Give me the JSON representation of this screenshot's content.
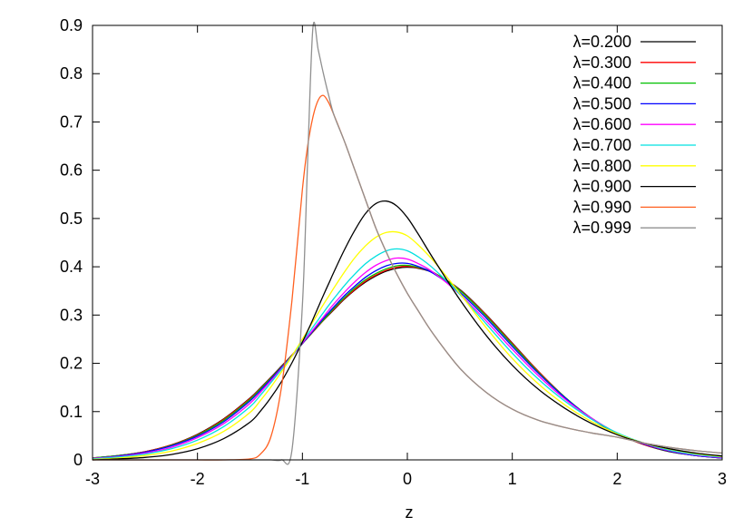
{
  "chart_data": {
    "type": "line",
    "title": "",
    "xlabel": "z",
    "ylabel": "",
    "xlim": [
      -3,
      3
    ],
    "ylim": [
      0,
      0.9
    ],
    "x_ticks": [
      "-3",
      "-2",
      "-1",
      "0",
      "1",
      "2",
      "3"
    ],
    "y_ticks": [
      "0",
      "0.1",
      "0.2",
      "0.3",
      "0.4",
      "0.5",
      "0.6",
      "0.7",
      "0.8",
      "0.9"
    ],
    "grid": false,
    "legend_position": "top-right",
    "x": [
      -3.0,
      -2.75,
      -2.5,
      -2.25,
      -2.0,
      -1.75,
      -1.5,
      -1.4,
      -1.3,
      -1.2,
      -1.1,
      -1.0,
      -0.95,
      -0.9,
      -0.85,
      -0.8,
      -0.75,
      -0.7,
      -0.6,
      -0.5,
      -0.4,
      -0.3,
      -0.2,
      -0.1,
      0.0,
      0.1,
      0.25,
      0.5,
      0.75,
      1.0,
      1.25,
      1.5,
      1.75,
      2.0,
      2.25,
      2.5,
      2.75,
      3.0
    ],
    "series": [
      {
        "name": "λ=0.200",
        "color": "#000000",
        "values": [
          0.004,
          0.009,
          0.017,
          0.031,
          0.053,
          0.085,
          0.128,
          0.149,
          0.171,
          0.194,
          0.217,
          0.241,
          0.253,
          0.265,
          0.277,
          0.289,
          0.3,
          0.311,
          0.333,
          0.352,
          0.368,
          0.381,
          0.391,
          0.397,
          0.399,
          0.397,
          0.387,
          0.353,
          0.301,
          0.242,
          0.183,
          0.13,
          0.086,
          0.054,
          0.032,
          0.017,
          0.009,
          0.004
        ]
      },
      {
        "name": "λ=0.300",
        "color": "#ff0000",
        "values": [
          0.004,
          0.009,
          0.017,
          0.031,
          0.052,
          0.084,
          0.127,
          0.148,
          0.17,
          0.193,
          0.217,
          0.241,
          0.253,
          0.265,
          0.277,
          0.289,
          0.301,
          0.312,
          0.334,
          0.353,
          0.37,
          0.383,
          0.393,
          0.399,
          0.401,
          0.398,
          0.388,
          0.352,
          0.3,
          0.241,
          0.183,
          0.13,
          0.087,
          0.055,
          0.032,
          0.018,
          0.009,
          0.004
        ]
      },
      {
        "name": "λ=0.400",
        "color": "#00c000",
        "values": [
          0.004,
          0.009,
          0.016,
          0.03,
          0.051,
          0.082,
          0.125,
          0.147,
          0.169,
          0.192,
          0.216,
          0.241,
          0.253,
          0.266,
          0.278,
          0.29,
          0.302,
          0.314,
          0.336,
          0.356,
          0.373,
          0.386,
          0.396,
          0.402,
          0.403,
          0.399,
          0.388,
          0.351,
          0.298,
          0.239,
          0.181,
          0.13,
          0.087,
          0.055,
          0.033,
          0.018,
          0.009,
          0.004
        ]
      },
      {
        "name": "λ=0.500",
        "color": "#0000ff",
        "values": [
          0.003,
          0.008,
          0.016,
          0.029,
          0.049,
          0.079,
          0.122,
          0.144,
          0.167,
          0.191,
          0.215,
          0.241,
          0.254,
          0.267,
          0.28,
          0.293,
          0.305,
          0.317,
          0.34,
          0.36,
          0.378,
          0.392,
          0.402,
          0.407,
          0.407,
          0.401,
          0.386,
          0.347,
          0.294,
          0.235,
          0.179,
          0.129,
          0.087,
          0.055,
          0.033,
          0.018,
          0.009,
          0.004
        ]
      },
      {
        "name": "λ=0.600",
        "color": "#ff00ff",
        "values": [
          0.003,
          0.007,
          0.014,
          0.026,
          0.046,
          0.075,
          0.117,
          0.14,
          0.164,
          0.189,
          0.215,
          0.242,
          0.256,
          0.269,
          0.283,
          0.296,
          0.31,
          0.323,
          0.347,
          0.369,
          0.388,
          0.403,
          0.413,
          0.418,
          0.416,
          0.407,
          0.388,
          0.343,
          0.288,
          0.229,
          0.174,
          0.126,
          0.087,
          0.055,
          0.034,
          0.019,
          0.01,
          0.005
        ]
      },
      {
        "name": "λ=0.700",
        "color": "#00e0e0",
        "values": [
          0.002,
          0.006,
          0.012,
          0.023,
          0.041,
          0.069,
          0.11,
          0.134,
          0.16,
          0.187,
          0.215,
          0.245,
          0.26,
          0.275,
          0.29,
          0.305,
          0.32,
          0.334,
          0.361,
          0.385,
          0.406,
          0.422,
          0.433,
          0.437,
          0.433,
          0.421,
          0.396,
          0.343,
          0.282,
          0.221,
          0.167,
          0.122,
          0.085,
          0.056,
          0.035,
          0.02,
          0.011,
          0.006
        ]
      },
      {
        "name": "λ=0.800",
        "color": "#ffff00",
        "values": [
          0.001,
          0.004,
          0.009,
          0.018,
          0.034,
          0.059,
          0.098,
          0.123,
          0.151,
          0.182,
          0.215,
          0.25,
          0.268,
          0.286,
          0.304,
          0.322,
          0.339,
          0.356,
          0.389,
          0.419,
          0.443,
          0.461,
          0.471,
          0.472,
          0.464,
          0.446,
          0.412,
          0.345,
          0.274,
          0.21,
          0.157,
          0.114,
          0.08,
          0.054,
          0.035,
          0.022,
          0.013,
          0.007
        ]
      },
      {
        "name": "λ=0.900",
        "color": "#000000",
        "values": [
          0.0,
          0.002,
          0.005,
          0.011,
          0.023,
          0.044,
          0.078,
          0.101,
          0.129,
          0.162,
          0.201,
          0.244,
          0.267,
          0.291,
          0.316,
          0.341,
          0.365,
          0.389,
          0.435,
          0.476,
          0.51,
          0.531,
          0.536,
          0.526,
          0.502,
          0.469,
          0.416,
          0.332,
          0.258,
          0.196,
          0.146,
          0.107,
          0.076,
          0.052,
          0.035,
          0.023,
          0.014,
          0.008
        ]
      },
      {
        "name": "λ=0.990",
        "color": "#ff6020",
        "values": [
          0.0,
          0.0,
          0.0,
          0.0,
          0.0,
          0.0,
          0.002,
          0.012,
          0.048,
          0.15,
          0.33,
          0.56,
          0.65,
          0.71,
          0.745,
          0.755,
          0.74,
          0.715,
          0.66,
          0.6,
          0.54,
          0.48,
          0.43,
          0.385,
          0.345,
          0.31,
          0.26,
          0.19,
          0.14,
          0.105,
          0.082,
          0.067,
          0.056,
          0.047,
          0.035,
          0.026,
          0.019,
          0.014
        ]
      },
      {
        "name": "λ=0.999",
        "color": "#909090",
        "values": [
          0.0,
          0.0,
          0.0,
          0.0,
          0.0,
          0.0,
          0.0,
          0.0,
          0.0,
          0.0,
          0.02,
          0.32,
          0.62,
          0.895,
          0.85,
          0.8,
          0.755,
          0.715,
          0.66,
          0.6,
          0.54,
          0.48,
          0.43,
          0.385,
          0.345,
          0.31,
          0.26,
          0.19,
          0.14,
          0.105,
          0.082,
          0.067,
          0.056,
          0.047,
          0.035,
          0.026,
          0.019,
          0.014
        ]
      }
    ]
  }
}
